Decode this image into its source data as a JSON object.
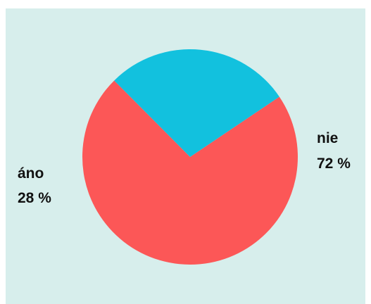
{
  "chart_data": {
    "type": "pie",
    "title": "",
    "start_angle_deg": 56,
    "direction": "clockwise",
    "slices": [
      {
        "label": "nie",
        "value": 72,
        "value_text": "72 %",
        "color": "#fc5757"
      },
      {
        "label": "áno",
        "value": 28,
        "value_text": "28 %",
        "color": "#12c1de"
      }
    ]
  },
  "colors": {
    "background": "#ffffff",
    "panel": "#d7eeec",
    "text": "#111111"
  }
}
